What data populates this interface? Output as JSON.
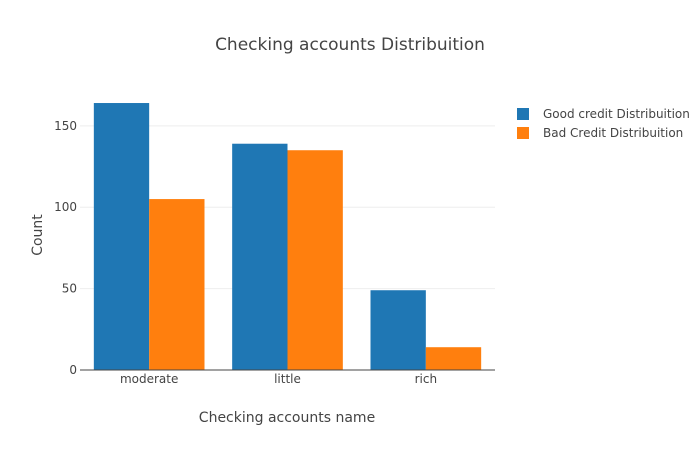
{
  "chart_data": {
    "type": "bar",
    "title": "Checking accounts Distribuition",
    "xlabel": "Checking accounts name",
    "ylabel": "Count",
    "categories": [
      "moderate",
      "little",
      "rich"
    ],
    "series": [
      {
        "name": "Good credit Distribuition",
        "color": "#1f77b4",
        "values": [
          164,
          139,
          49
        ]
      },
      {
        "name": "Bad Credit Distribuition",
        "color": "#ff7f0e",
        "values": [
          105,
          135,
          14
        ]
      }
    ],
    "ylim": [
      0,
      172
    ],
    "yticks": [
      0,
      50,
      100,
      150
    ],
    "grid": true,
    "legend_position": "top-right"
  }
}
